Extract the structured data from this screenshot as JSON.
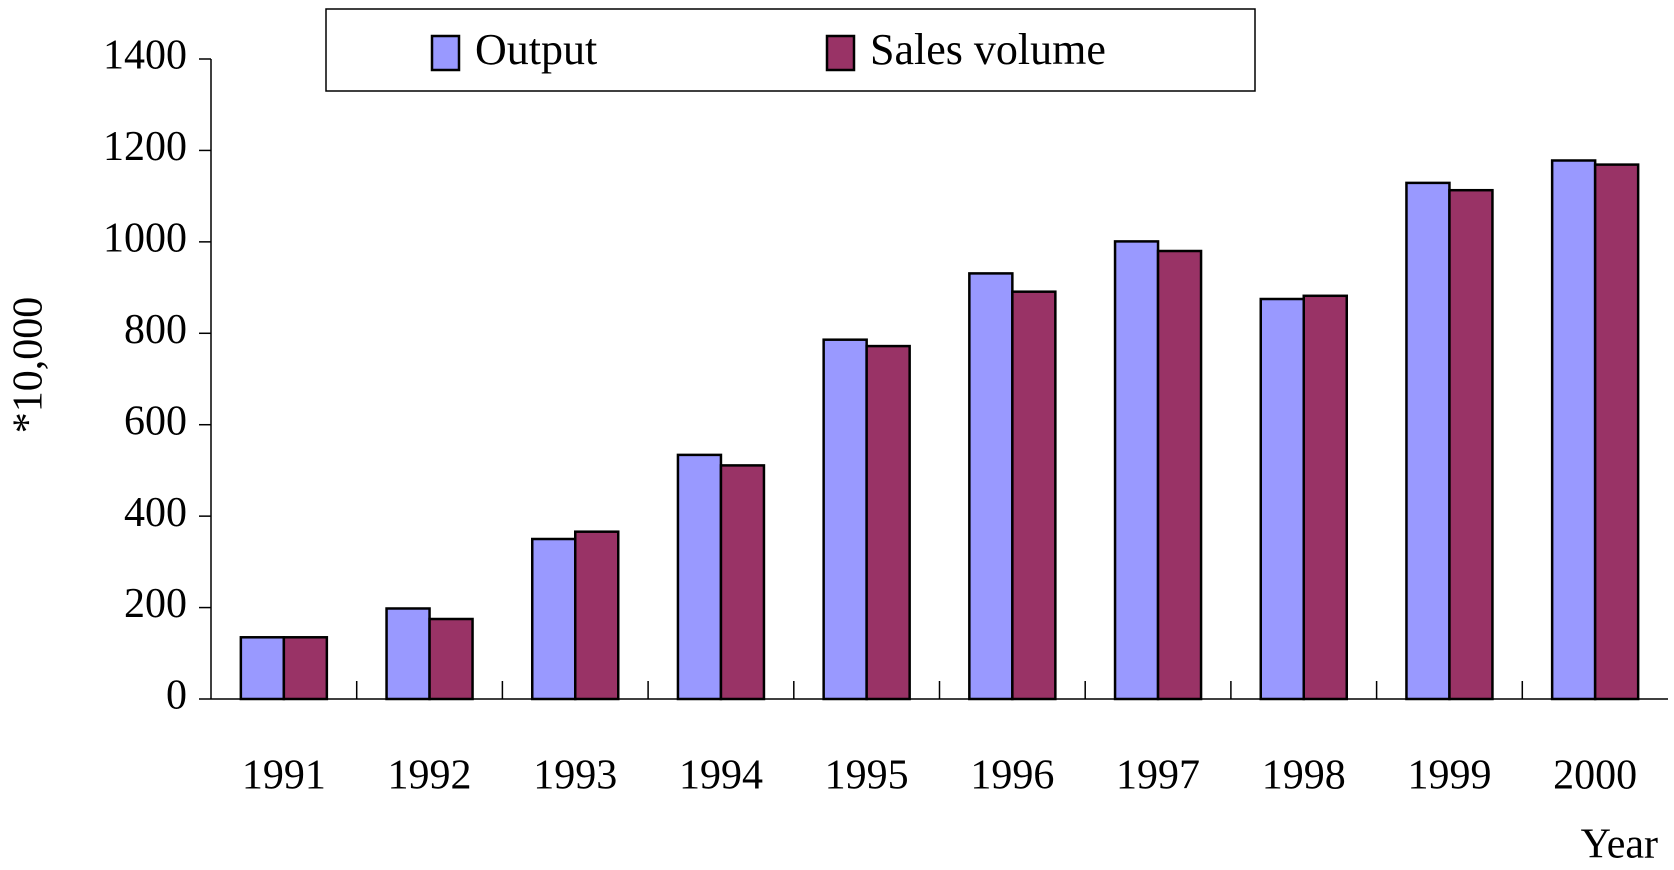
{
  "chart_data": {
    "type": "bar",
    "y_label": "*10,000",
    "x_label": "Year",
    "categories": [
      "1991",
      "1992",
      "1993",
      "1994",
      "1995",
      "1996",
      "1997",
      "1998",
      "1999",
      "2000"
    ],
    "series": [
      {
        "name": "Output",
        "color": "#9999ff",
        "values": [
          135,
          198,
          350,
          534,
          786,
          931,
          1001,
          875,
          1129,
          1178
        ]
      },
      {
        "name": "Sales volume",
        "color": "#993366",
        "values": [
          135,
          175,
          366,
          511,
          772,
          891,
          980,
          882,
          1113,
          1169
        ]
      }
    ],
    "ylim": [
      0,
      1400
    ],
    "yticks": [
      0,
      200,
      400,
      600,
      800,
      1000,
      1200,
      1400
    ],
    "legend": "top"
  }
}
